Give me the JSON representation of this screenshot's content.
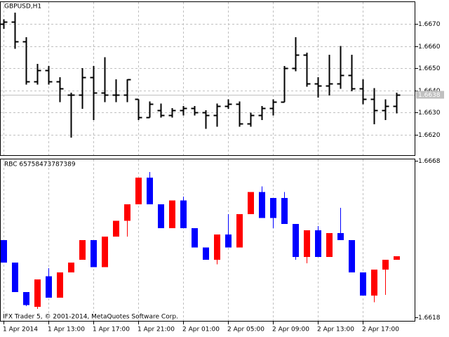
{
  "chart_data": [
    {
      "type": "ohlc",
      "title": "GBPUSD,H1",
      "color": "#000000",
      "categories": [
        "1 Apr 2014",
        null,
        null,
        null,
        "1 Apr 13:00",
        null,
        null,
        null,
        "1 Apr 17:00",
        null,
        null,
        null,
        "1 Apr 21:00",
        null,
        null,
        null,
        "2 Apr 01:00",
        null,
        null,
        null,
        "2 Apr 05:00",
        null,
        null,
        null,
        "2 Apr 09:00",
        null,
        null,
        null,
        "2 Apr 13:00",
        null,
        null,
        null,
        "2 Apr 17:00",
        null,
        null,
        null
      ],
      "open": [
        1.667,
        1.6671,
        1.6662,
        1.6644,
        1.6649,
        1.6644,
        1.6638,
        1.6638,
        1.6646,
        1.6639,
        1.6638,
        1.6638,
        1.6636,
        1.6628,
        1.6631,
        1.6629,
        1.6631,
        1.6632,
        1.663,
        1.6629,
        1.6633,
        1.6634,
        1.6625,
        1.6629,
        1.6632,
        1.6635,
        1.665,
        1.6656,
        1.6643,
        1.6642,
        1.6643,
        1.6647,
        1.6641,
        1.6636,
        1.6631,
        1.6633
      ],
      "high": [
        1.6672,
        1.6675,
        1.6664,
        1.6652,
        1.6651,
        1.6646,
        1.6639,
        1.665,
        1.6651,
        1.6655,
        1.6645,
        1.6645,
        1.6636,
        1.6635,
        1.6634,
        1.6632,
        1.6633,
        1.6633,
        1.6631,
        1.6634,
        1.6636,
        1.6635,
        1.663,
        1.6633,
        1.6636,
        1.6651,
        1.6664,
        1.6657,
        1.6646,
        1.6656,
        1.666,
        1.6656,
        1.6645,
        1.6641,
        1.6636,
        1.6639
      ],
      "low": [
        1.6668,
        1.6659,
        1.6643,
        1.6643,
        1.6643,
        1.6635,
        1.6619,
        1.6632,
        1.6627,
        1.6635,
        1.6635,
        1.6635,
        1.6627,
        1.6628,
        1.6628,
        1.6628,
        1.6629,
        1.6629,
        1.6623,
        1.6624,
        1.6632,
        1.6624,
        1.6624,
        1.6627,
        1.6629,
        1.6635,
        1.6649,
        1.6642,
        1.6637,
        1.6638,
        1.6641,
        1.664,
        1.6634,
        1.6625,
        1.6627,
        1.663
      ],
      "close": [
        1.6671,
        1.6662,
        1.6644,
        1.6649,
        1.6644,
        1.6641,
        1.6638,
        1.6646,
        1.6639,
        1.6638,
        1.6638,
        1.6645,
        1.6628,
        1.6634,
        1.6629,
        1.6631,
        1.6632,
        1.663,
        1.6629,
        1.6633,
        1.6634,
        1.6625,
        1.6629,
        1.6632,
        1.6635,
        1.665,
        1.6656,
        1.6643,
        1.6642,
        1.6643,
        1.6647,
        1.6641,
        1.6636,
        1.6631,
        1.6633,
        1.6638
      ],
      "ylim": [
        1.66105,
        1.66801
      ],
      "yticks": [
        {
          "value": 1.667,
          "label": "1.6670"
        },
        {
          "value": 1.666,
          "label": "1.6660"
        },
        {
          "value": 1.665,
          "label": "1.6650"
        },
        {
          "value": 1.664,
          "label": "1.6640"
        },
        {
          "value": 1.663,
          "label": "1.6630"
        },
        {
          "value": 1.662,
          "label": "1.6620"
        }
      ],
      "last_price": 1.6638,
      "grid": true
    },
    {
      "type": "candlestick",
      "title": "RBC 65758473787389",
      "up_color": "#ff0000",
      "down_color": "#0000ff",
      "open": [
        1.66427,
        1.66355,
        1.66261,
        1.66214,
        1.66312,
        1.66243,
        1.66324,
        1.66364,
        1.66427,
        1.66341,
        1.66438,
        1.66489,
        1.66541,
        1.66626,
        1.66541,
        1.66465,
        1.66554,
        1.66465,
        1.66404,
        1.66364,
        1.66445,
        1.66404,
        1.6651,
        1.66581,
        1.66561,
        1.66561,
        1.66478,
        1.66373,
        1.66458,
        1.66373,
        1.66449,
        1.66427,
        1.66324,
        1.6625,
        1.66333,
        1.66364
      ],
      "high": [
        1.66427,
        1.66355,
        1.66261,
        1.66301,
        1.66337,
        1.66324,
        1.66355,
        1.66427,
        1.66427,
        1.66438,
        1.66489,
        1.66541,
        1.66626,
        1.66644,
        1.66541,
        1.66554,
        1.66566,
        1.66465,
        1.66404,
        1.66445,
        1.6651,
        1.6651,
        1.66581,
        1.66599,
        1.66561,
        1.66581,
        1.66478,
        1.66458,
        1.66472,
        1.66449,
        1.6653,
        1.66427,
        1.66324,
        1.66333,
        1.66364,
        1.66375
      ],
      "low": [
        1.66355,
        1.66261,
        1.66216,
        1.66207,
        1.66243,
        1.66243,
        1.66324,
        1.66364,
        1.66341,
        1.66341,
        1.66438,
        1.66438,
        1.66541,
        1.66541,
        1.66465,
        1.66465,
        1.66465,
        1.66404,
        1.66364,
        1.6635,
        1.66404,
        1.66404,
        1.6651,
        1.66498,
        1.66465,
        1.66478,
        1.66364,
        1.66353,
        1.66373,
        1.66373,
        1.66427,
        1.66324,
        1.6625,
        1.66229,
        1.66252,
        1.66364
      ],
      "close": [
        1.66355,
        1.66261,
        1.6622,
        1.66301,
        1.66243,
        1.66324,
        1.66355,
        1.66427,
        1.66341,
        1.66438,
        1.66489,
        1.66541,
        1.66626,
        1.66541,
        1.66465,
        1.66554,
        1.66465,
        1.66404,
        1.66364,
        1.66445,
        1.66404,
        1.6651,
        1.66581,
        1.66498,
        1.66498,
        1.66478,
        1.66373,
        1.66458,
        1.66373,
        1.66449,
        1.66427,
        1.66324,
        1.6625,
        1.66333,
        1.66364,
        1.66375
      ],
      "ylim": [
        1.66167,
        1.66687
      ],
      "yticks": [
        1.6668,
        1.6618
      ],
      "footer": "IFX Trader 5, © 2001-2014, MetaQuotes Software Corp."
    }
  ]
}
